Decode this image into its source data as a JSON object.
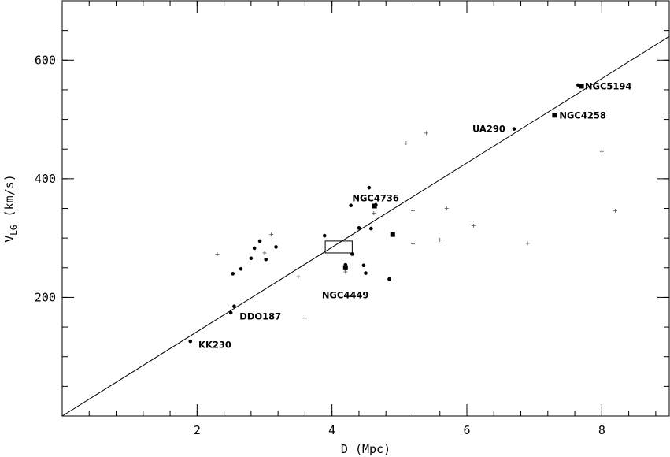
{
  "chart_data": {
    "type": "scatter",
    "xlabel": "D (Mpc)",
    "ylabel": "V",
    "ylabel_sub": "LG",
    "ylabel_unit": "(km/s)",
    "xlim": [
      0,
      9
    ],
    "ylim": [
      0,
      700
    ],
    "x_ticks": [
      2,
      4,
      6,
      8
    ],
    "y_ticks": [
      200,
      400,
      600
    ],
    "x_minor_step": 0.4,
    "y_minor_step": 50,
    "grid": false,
    "fit_line": {
      "x0": 0,
      "y0": 0,
      "x1": 9,
      "y1": 640
    },
    "box": {
      "x_range": [
        3.9,
        4.3
      ],
      "y_range": [
        275,
        295
      ]
    },
    "series": [
      {
        "marker": "dot",
        "points": [
          [
            2.5,
            174
          ],
          [
            2.55,
            185
          ],
          [
            2.53,
            240
          ],
          [
            2.65,
            248
          ],
          [
            2.8,
            266
          ],
          [
            2.85,
            283
          ],
          [
            2.93,
            295
          ],
          [
            3.02,
            264
          ],
          [
            3.17,
            285
          ],
          [
            3.89,
            304
          ],
          [
            4.28,
            355
          ],
          [
            4.3,
            273
          ],
          [
            4.4,
            317
          ],
          [
            4.55,
            385
          ],
          [
            4.58,
            316
          ],
          [
            4.47,
            254
          ],
          [
            4.5,
            241
          ],
          [
            4.85,
            231
          ],
          [
            6.7,
            484
          ],
          [
            7.65,
            558
          ],
          [
            1.9,
            126
          ],
          [
            4.2,
            255
          ],
          [
            4.2,
            248
          ],
          [
            4.65,
            356
          ]
        ]
      },
      {
        "marker": "square",
        "points": [
          [
            7.7,
            556
          ],
          [
            7.3,
            507
          ],
          [
            4.9,
            306
          ],
          [
            4.63,
            354
          ],
          [
            4.2,
            250
          ]
        ]
      },
      {
        "marker": "plus",
        "points": [
          [
            2.3,
            273
          ],
          [
            3.1,
            306
          ],
          [
            3.0,
            275
          ],
          [
            3.5,
            235
          ],
          [
            3.6,
            165
          ],
          [
            4.62,
            342
          ],
          [
            5.1,
            460
          ],
          [
            5.4,
            477
          ],
          [
            5.2,
            346
          ],
          [
            5.2,
            290
          ],
          [
            5.6,
            297
          ],
          [
            5.7,
            350
          ],
          [
            6.1,
            321
          ],
          [
            6.9,
            291
          ],
          [
            8.0,
            446
          ],
          [
            8.2,
            346
          ],
          [
            4.2,
            243
          ]
        ]
      }
    ],
    "annotations": [
      {
        "text": "NGC5194",
        "x": 7.75,
        "y": 556,
        "anchor": "start"
      },
      {
        "text": "NGC4258",
        "x": 7.37,
        "y": 507,
        "anchor": "start"
      },
      {
        "text": "UA290",
        "x": 6.57,
        "y": 484,
        "anchor": "end"
      },
      {
        "text": "NGC4736",
        "x": 4.3,
        "y": 367,
        "anchor": "start"
      },
      {
        "text": "NGC4449",
        "x": 3.85,
        "y": 204,
        "anchor": "start"
      },
      {
        "text": "DDO187",
        "x": 2.63,
        "y": 168,
        "anchor": "start"
      },
      {
        "text": "KK230",
        "x": 2.02,
        "y": 120,
        "anchor": "start"
      }
    ]
  }
}
